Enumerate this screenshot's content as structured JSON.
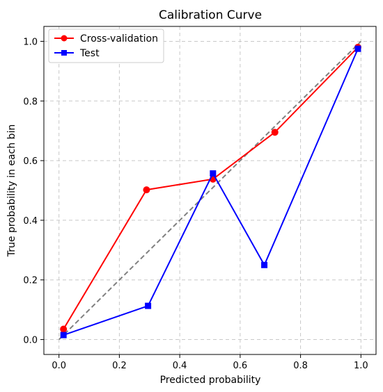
{
  "chart_data": {
    "type": "line",
    "title": "Calibration Curve",
    "xlabel": "Predicted probability",
    "ylabel": "True probability in each bin",
    "xlim": [
      -0.05,
      1.05
    ],
    "ylim": [
      -0.05,
      1.05
    ],
    "xticks": [
      0.0,
      0.2,
      0.4,
      0.6,
      0.8,
      1.0
    ],
    "yticks": [
      0.0,
      0.2,
      0.4,
      0.6,
      0.8,
      1.0
    ],
    "xtick_labels": [
      "0.0",
      "0.2",
      "0.4",
      "0.6",
      "0.8",
      "1.0"
    ],
    "ytick_labels": [
      "0.0",
      "0.2",
      "0.4",
      "0.6",
      "0.8",
      "1.0"
    ],
    "grid": true,
    "legend_position": "top-left",
    "series": [
      {
        "name": "Cross-validation",
        "color": "#ff0000",
        "marker": "circle",
        "x": [
          0.015,
          0.29,
          0.51,
          0.715,
          0.99
        ],
        "y": [
          0.035,
          0.502,
          0.538,
          0.695,
          0.98
        ]
      },
      {
        "name": "Test",
        "color": "#0000ff",
        "marker": "square",
        "x": [
          0.015,
          0.295,
          0.51,
          0.68,
          0.99
        ],
        "y": [
          0.015,
          0.113,
          0.557,
          0.25,
          0.975
        ]
      }
    ],
    "reference_line": {
      "color": "#808080",
      "style": "dashed",
      "x": [
        0.0,
        1.0
      ],
      "y": [
        0.0,
        1.0
      ]
    }
  }
}
